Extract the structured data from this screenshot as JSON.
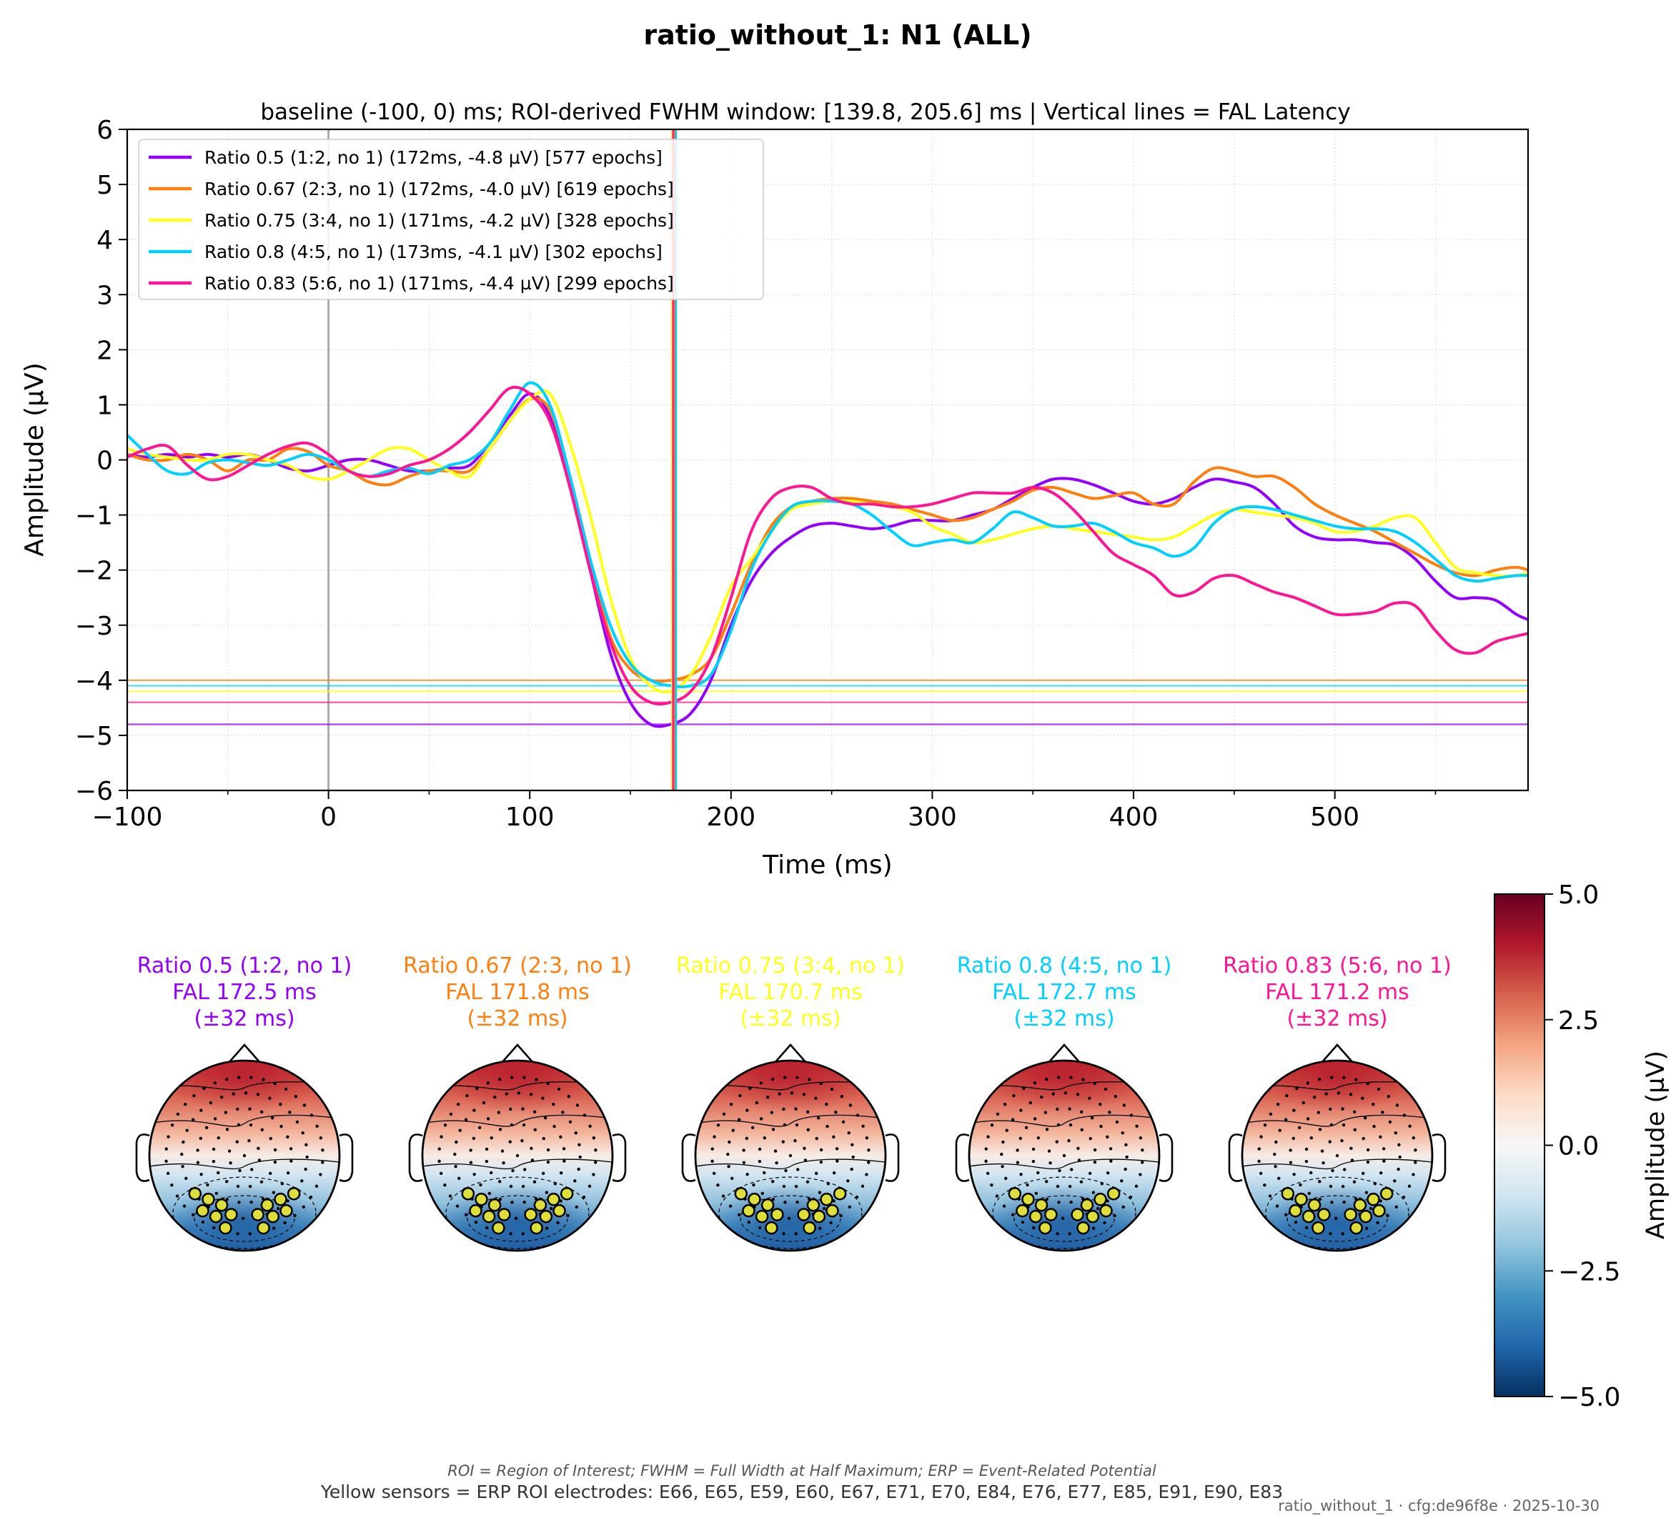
{
  "figure": {
    "title": "ratio_without_1: N1 (ALL)",
    "footnote_line1": "ROI = Region of Interest; FWHM = Full Width at Half Maximum; ERP = Event-Related Potential",
    "footnote_line2": "Yellow sensors = ERP ROI electrodes: E66, E65, E59, E60, E67, E71, E70, E84, E76, E77, E85, E91, E90, E83",
    "stamp": "ratio_without_1 · cfg:de96f8e · 2025-10-30"
  },
  "chart_data": [
    {
      "type": "line",
      "title": "baseline (-100, 0) ms; ROI-derived FWHM window: [139.8, 205.6] ms | Vertical lines = FAL Latency",
      "xlabel": "Time (ms)",
      "ylabel": "Amplitude (µV)",
      "xlim": [
        -100,
        596
      ],
      "ylim": [
        -6,
        6
      ],
      "xticks": [
        -100,
        0,
        100,
        200,
        300,
        400,
        500
      ],
      "xtick_labels": [
        "−100",
        "0",
        "100",
        "200",
        "300",
        "400",
        "500"
      ],
      "yticks": [
        -6,
        -5,
        -4,
        -3,
        -2,
        -1,
        0,
        1,
        2,
        3,
        4,
        5,
        6
      ],
      "ytick_labels": [
        "−6",
        "−5",
        "−4",
        "−3",
        "−2",
        "−1",
        "0",
        "1",
        "2",
        "3",
        "4",
        "5",
        "6"
      ],
      "grid": true,
      "legend_position": "top-left",
      "stimulus_onset_line": 0,
      "series": [
        {
          "name": "Ratio 0.5 (1:2, no 1) (172ms, -4.8 µV) [577 epochs]",
          "color": "#9400ff",
          "fal_latency": 172.5,
          "peak_amplitude": -4.8,
          "x": [
            -100,
            -90,
            -80,
            -70,
            -60,
            -50,
            -40,
            -30,
            -20,
            -10,
            0,
            10,
            20,
            30,
            40,
            50,
            60,
            70,
            80,
            90,
            100,
            110,
            120,
            130,
            140,
            150,
            160,
            170,
            180,
            190,
            200,
            210,
            220,
            230,
            240,
            250,
            260,
            270,
            280,
            290,
            300,
            310,
            320,
            330,
            340,
            350,
            360,
            370,
            380,
            390,
            400,
            410,
            420,
            430,
            440,
            450,
            460,
            470,
            480,
            490,
            500,
            510,
            520,
            530,
            540,
            550,
            560,
            570,
            580,
            590,
            596
          ],
          "y": [
            0.1,
            0.05,
            0.1,
            0.05,
            0.1,
            0.05,
            0.1,
            0.0,
            -0.15,
            -0.2,
            -0.1,
            0.0,
            0.0,
            -0.1,
            -0.2,
            -0.2,
            -0.15,
            -0.1,
            0.3,
            0.8,
            1.2,
            0.8,
            -0.5,
            -2.0,
            -3.5,
            -4.4,
            -4.8,
            -4.8,
            -4.6,
            -4.0,
            -3.0,
            -2.2,
            -1.7,
            -1.4,
            -1.2,
            -1.15,
            -1.2,
            -1.25,
            -1.2,
            -1.1,
            -1.1,
            -1.1,
            -1.0,
            -0.9,
            -0.7,
            -0.5,
            -0.35,
            -0.35,
            -0.45,
            -0.6,
            -0.75,
            -0.8,
            -0.7,
            -0.5,
            -0.35,
            -0.4,
            -0.5,
            -0.8,
            -1.2,
            -1.4,
            -1.45,
            -1.45,
            -1.5,
            -1.55,
            -1.8,
            -2.2,
            -2.5,
            -2.5,
            -2.55,
            -2.8,
            -2.9
          ]
        },
        {
          "name": "Ratio 0.67 (2:3, no 1) (172ms, -4.0 µV) [619 epochs]",
          "color": "#ff7f0e",
          "fal_latency": 171.8,
          "peak_amplitude": -4.0,
          "x": [
            -100,
            -90,
            -80,
            -70,
            -60,
            -50,
            -40,
            -30,
            -20,
            -10,
            0,
            10,
            20,
            30,
            40,
            50,
            60,
            70,
            80,
            90,
            100,
            110,
            120,
            130,
            140,
            150,
            160,
            170,
            180,
            190,
            200,
            210,
            220,
            230,
            240,
            250,
            260,
            270,
            280,
            290,
            300,
            310,
            320,
            330,
            340,
            350,
            360,
            370,
            380,
            390,
            400,
            410,
            420,
            430,
            440,
            450,
            460,
            470,
            480,
            490,
            500,
            510,
            520,
            530,
            540,
            550,
            560,
            570,
            580,
            590,
            596
          ],
          "y": [
            0.1,
            0.0,
            0.0,
            0.1,
            0.0,
            -0.2,
            0.0,
            0.0,
            0.2,
            0.15,
            -0.1,
            -0.2,
            -0.4,
            -0.45,
            -0.3,
            -0.2,
            -0.2,
            -0.2,
            0.2,
            0.7,
            1.1,
            0.9,
            -0.3,
            -1.8,
            -3.2,
            -3.8,
            -4.0,
            -4.0,
            -3.9,
            -3.6,
            -2.8,
            -1.9,
            -1.2,
            -0.85,
            -0.75,
            -0.7,
            -0.7,
            -0.75,
            -0.8,
            -0.9,
            -1.0,
            -1.1,
            -1.05,
            -0.9,
            -0.75,
            -0.55,
            -0.5,
            -0.6,
            -0.7,
            -0.65,
            -0.6,
            -0.8,
            -0.8,
            -0.4,
            -0.15,
            -0.2,
            -0.3,
            -0.3,
            -0.5,
            -0.8,
            -1.0,
            -1.15,
            -1.3,
            -1.5,
            -1.7,
            -1.9,
            -2.05,
            -2.1,
            -2.0,
            -1.95,
            -2.0
          ]
        },
        {
          "name": "Ratio 0.75 (3:4, no 1) (171ms, -4.2 µV) [328 epochs]",
          "color": "#ffff1a",
          "fal_latency": 170.7,
          "peak_amplitude": -4.2,
          "x": [
            -100,
            -90,
            -80,
            -70,
            -60,
            -50,
            -40,
            -30,
            -20,
            -10,
            0,
            10,
            20,
            30,
            40,
            50,
            60,
            70,
            80,
            90,
            100,
            110,
            120,
            130,
            140,
            150,
            160,
            170,
            180,
            190,
            200,
            210,
            220,
            230,
            240,
            250,
            260,
            270,
            280,
            290,
            300,
            310,
            320,
            330,
            340,
            350,
            360,
            370,
            380,
            390,
            400,
            410,
            420,
            430,
            440,
            450,
            460,
            470,
            480,
            490,
            500,
            510,
            520,
            530,
            540,
            550,
            560,
            570,
            580,
            590,
            596
          ],
          "y": [
            0.2,
            0.1,
            0.05,
            0.0,
            0.0,
            0.1,
            0.1,
            0.0,
            -0.1,
            -0.3,
            -0.35,
            -0.2,
            0.0,
            0.2,
            0.2,
            0.0,
            -0.2,
            -0.3,
            0.2,
            0.7,
            1.1,
            1.2,
            0.3,
            -1.0,
            -2.5,
            -3.6,
            -4.1,
            -4.2,
            -3.9,
            -3.2,
            -2.3,
            -1.8,
            -1.3,
            -0.9,
            -0.8,
            -0.75,
            -0.75,
            -0.8,
            -0.85,
            -0.95,
            -1.2,
            -1.35,
            -1.5,
            -1.45,
            -1.35,
            -1.25,
            -1.2,
            -1.25,
            -1.3,
            -1.35,
            -1.4,
            -1.45,
            -1.4,
            -1.2,
            -1.0,
            -0.9,
            -0.95,
            -1.0,
            -1.05,
            -1.15,
            -1.3,
            -1.3,
            -1.2,
            -1.05,
            -1.05,
            -1.5,
            -1.95,
            -2.05,
            -2.1,
            -2.1,
            -2.05
          ]
        },
        {
          "name": "Ratio 0.8 (4:5, no 1) (173ms, -4.1 µV) [302 epochs]",
          "color": "#00d0ff",
          "fal_latency": 172.7,
          "peak_amplitude": -4.1,
          "x": [
            -100,
            -90,
            -80,
            -70,
            -60,
            -50,
            -40,
            -30,
            -20,
            -10,
            0,
            10,
            20,
            30,
            40,
            50,
            60,
            70,
            80,
            90,
            100,
            110,
            120,
            130,
            140,
            150,
            160,
            170,
            180,
            190,
            200,
            210,
            220,
            230,
            240,
            250,
            260,
            270,
            280,
            290,
            300,
            310,
            320,
            330,
            340,
            350,
            360,
            370,
            380,
            390,
            400,
            410,
            420,
            430,
            440,
            450,
            460,
            470,
            480,
            490,
            500,
            510,
            520,
            530,
            540,
            550,
            560,
            570,
            580,
            590,
            596
          ],
          "y": [
            0.45,
            0.1,
            -0.2,
            -0.25,
            -0.05,
            0.0,
            -0.05,
            -0.1,
            0.0,
            0.1,
            0.0,
            -0.2,
            -0.3,
            -0.2,
            -0.15,
            -0.25,
            -0.1,
            0.0,
            0.3,
            0.9,
            1.4,
            1.0,
            -0.3,
            -1.8,
            -3.0,
            -3.7,
            -4.0,
            -4.1,
            -4.1,
            -3.9,
            -3.1,
            -2.0,
            -1.3,
            -0.85,
            -0.75,
            -0.75,
            -0.8,
            -1.0,
            -1.3,
            -1.55,
            -1.5,
            -1.45,
            -1.5,
            -1.25,
            -0.95,
            -1.05,
            -1.2,
            -1.2,
            -1.15,
            -1.3,
            -1.5,
            -1.6,
            -1.75,
            -1.6,
            -1.15,
            -0.9,
            -0.85,
            -0.9,
            -1.0,
            -1.1,
            -1.2,
            -1.25,
            -1.25,
            -1.3,
            -1.5,
            -1.8,
            -2.1,
            -2.2,
            -2.15,
            -2.1,
            -2.1
          ]
        },
        {
          "name": "Ratio 0.83 (5:6, no 1) (171ms, -4.4 µV) [299 epochs]",
          "color": "#ff1493",
          "fal_latency": 171.2,
          "peak_amplitude": -4.4,
          "x": [
            -100,
            -90,
            -80,
            -70,
            -60,
            -50,
            -40,
            -30,
            -20,
            -10,
            0,
            10,
            20,
            30,
            40,
            50,
            60,
            70,
            80,
            90,
            100,
            110,
            120,
            130,
            140,
            150,
            160,
            170,
            180,
            190,
            200,
            210,
            220,
            230,
            240,
            250,
            260,
            270,
            280,
            290,
            300,
            310,
            320,
            330,
            340,
            350,
            360,
            370,
            380,
            390,
            400,
            410,
            420,
            430,
            440,
            450,
            460,
            470,
            480,
            490,
            500,
            510,
            520,
            530,
            540,
            550,
            560,
            570,
            580,
            590,
            596
          ],
          "y": [
            0.05,
            0.2,
            0.25,
            -0.1,
            -0.35,
            -0.3,
            -0.1,
            0.1,
            0.25,
            0.3,
            0.1,
            -0.2,
            -0.3,
            -0.25,
            -0.1,
            0.0,
            0.2,
            0.5,
            0.9,
            1.3,
            1.2,
            0.7,
            -0.5,
            -2.0,
            -3.3,
            -4.1,
            -4.4,
            -4.4,
            -4.2,
            -3.6,
            -2.5,
            -1.3,
            -0.7,
            -0.5,
            -0.5,
            -0.7,
            -0.8,
            -0.8,
            -0.85,
            -0.85,
            -0.8,
            -0.7,
            -0.6,
            -0.6,
            -0.6,
            -0.5,
            -0.6,
            -0.9,
            -1.3,
            -1.7,
            -1.9,
            -2.1,
            -2.45,
            -2.4,
            -2.15,
            -2.1,
            -2.25,
            -2.4,
            -2.5,
            -2.65,
            -2.8,
            -2.8,
            -2.75,
            -2.6,
            -2.65,
            -3.1,
            -3.45,
            -3.5,
            -3.3,
            -3.2,
            -3.15
          ]
        }
      ]
    },
    {
      "type": "heatmap",
      "subtype": "topomap",
      "colorbar_label": "Amplitude (µV)",
      "colorbar_range": [
        -5,
        5
      ],
      "colorbar_ticks": [
        5,
        2.5,
        0,
        -2.5,
        -5
      ],
      "colorbar_tick_labels": [
        "5.0",
        "2.5",
        "0.0",
        "−2.5",
        "−5.0"
      ],
      "colormap": [
        "#67001f",
        "#b2182b",
        "#d6604d",
        "#f4a582",
        "#fddbc7",
        "#f7f7f7",
        "#d1e5f0",
        "#92c5de",
        "#4393c3",
        "#2166ac",
        "#053061"
      ],
      "roi_sensor_color": "#dede3a",
      "maps": [
        {
          "title": "Ratio 0.5 (1:2, no 1)",
          "fal": "FAL 172.5 ms",
          "window": "(±32 ms)",
          "color": "#9400ff"
        },
        {
          "title": "Ratio 0.67 (2:3, no 1)",
          "fal": "FAL 171.8 ms",
          "window": "(±32 ms)",
          "color": "#ff7f0e"
        },
        {
          "title": "Ratio 0.75 (3:4, no 1)",
          "fal": "FAL 170.7 ms",
          "window": "(±32 ms)",
          "color": "#ffff1a"
        },
        {
          "title": "Ratio 0.8 (4:5, no 1)",
          "fal": "FAL 172.7 ms",
          "window": "(±32 ms)",
          "color": "#00d0ff"
        },
        {
          "title": "Ratio 0.83 (5:6, no 1)",
          "fal": "FAL 171.2 ms",
          "window": "(±32 ms)",
          "color": "#ff1493"
        }
      ]
    }
  ]
}
